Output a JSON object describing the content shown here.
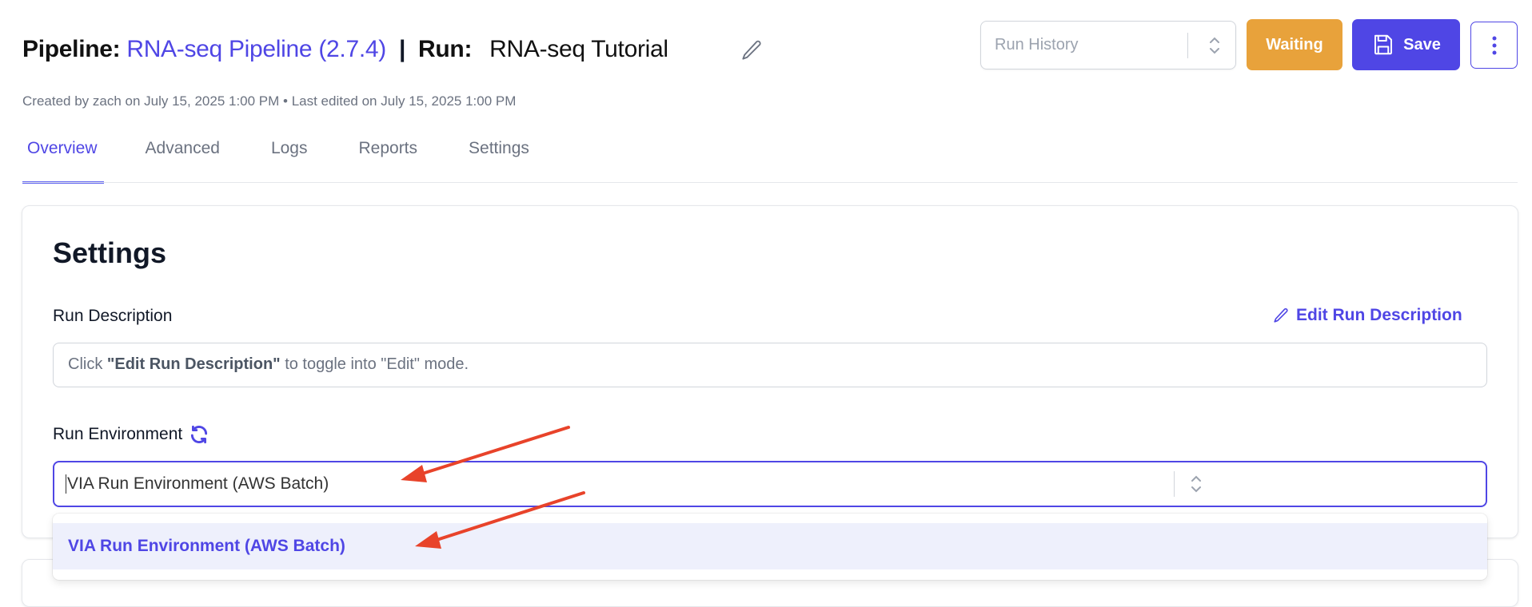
{
  "header": {
    "pipeline_label": "Pipeline:",
    "pipeline_name": "RNA-seq Pipeline (2.7.4)",
    "separator": "|",
    "run_label": "Run:",
    "run_name": "RNA-seq Tutorial",
    "meta": "Created by zach on July 15, 2025 1:00 PM • Last edited on July 15, 2025 1:00 PM",
    "run_history_placeholder": "Run History",
    "status_label": "Waiting",
    "save_label": "Save"
  },
  "tabs": [
    {
      "label": "Overview",
      "active": true
    },
    {
      "label": "Advanced"
    },
    {
      "label": "Logs"
    },
    {
      "label": "Reports"
    },
    {
      "label": "Settings"
    }
  ],
  "settings": {
    "heading": "Settings",
    "run_description_label": "Run Description",
    "edit_description_label": "Edit Run Description",
    "description_prefix": "Click ",
    "description_bold": "\"Edit Run Description\"",
    "description_suffix": " to toggle into \"Edit\" mode.",
    "run_environment_label": "Run Environment",
    "run_environment_value": "VIA Run Environment (AWS Batch)",
    "run_environment_options": [
      "VIA Run Environment (AWS Batch)"
    ]
  },
  "colors": {
    "accent": "#4f46e5",
    "status_waiting": "#e8a23b",
    "annotation_arrow": "#e8432a",
    "option_highlight": "#eef0fc"
  }
}
